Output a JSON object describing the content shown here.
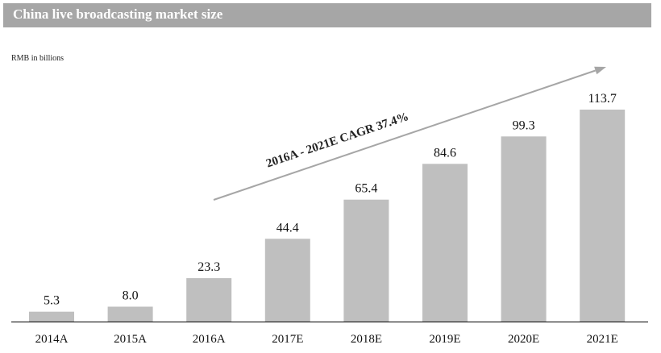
{
  "header": {
    "title": "China live broadcasting market size"
  },
  "chart_data": {
    "type": "bar",
    "title": "China live broadcasting market size",
    "unit_label": "RMB in billions",
    "xlabel": "",
    "ylabel": "",
    "categories": [
      "2014A",
      "2015A",
      "2016A",
      "2017E",
      "2018E",
      "2019E",
      "2020E",
      "2021E"
    ],
    "values": [
      5.3,
      8.0,
      23.3,
      44.4,
      65.4,
      84.6,
      99.3,
      113.7
    ],
    "value_labels": [
      "5.3",
      "8.0",
      "23.3",
      "44.4",
      "65.4",
      "84.6",
      "99.3",
      "113.7"
    ],
    "ylim": [
      0,
      113.7
    ],
    "grid": false,
    "legend": "none",
    "annotation": {
      "text": "2016A - 2021E CAGR 37.4%",
      "type": "arrow"
    },
    "colors": {
      "bar": "#bfbfbf",
      "title_bar": "#a6a6a6",
      "axis": "#000000",
      "arrow": "#a6a6a6"
    }
  }
}
